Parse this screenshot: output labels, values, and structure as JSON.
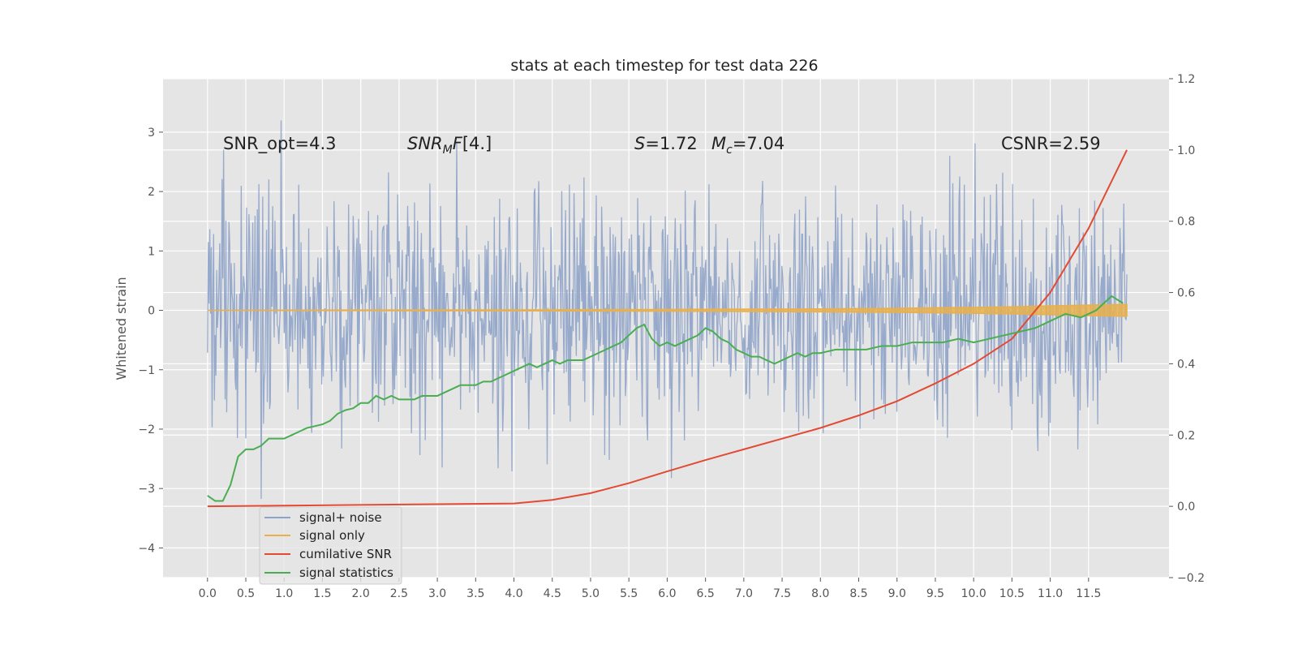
{
  "chart_data": {
    "type": "line",
    "title": "stats at each timestep for test data 226",
    "ylabel": "Whitened strain",
    "xlabel": "",
    "xlim": [
      -0.58,
      12.55
    ],
    "ylim": [
      -4.5,
      3.9
    ],
    "y2lim": [
      -0.2,
      1.2
    ],
    "grid": true,
    "legend_position": "lower-left",
    "x_ticks": [
      "0.0",
      "0.5",
      "1.0",
      "1.5",
      "2.0",
      "2.5",
      "3.0",
      "3.5",
      "4.0",
      "4.5",
      "5.0",
      "5.5",
      "6.0",
      "6.5",
      "7.0",
      "7.5",
      "8.0",
      "8.5",
      "9.0",
      "9.5",
      "10.0",
      "10.5",
      "11.0",
      "11.5"
    ],
    "y_ticks": [
      "3",
      "2",
      "1",
      "0",
      "−1",
      "−2",
      "−3",
      "−4"
    ],
    "y2_ticks": [
      "1.2",
      "1.0",
      "0.8",
      "0.6",
      "0.4",
      "0.2",
      "0.0",
      "−0.2"
    ],
    "annotations": {
      "snr_opt": "SNR_opt=4.3",
      "snr_mf": "[4.]",
      "s_value": "=1.72",
      "mc_value": "=7.04",
      "csnr": "CSNR=2.59"
    },
    "series": [
      {
        "name": "signal+ noise",
        "color": "#8fa3c8",
        "x_range": [
          0.0,
          12.0
        ],
        "samples": 1200,
        "std": 1.0,
        "min": -3.25,
        "max": 3.5
      },
      {
        "name": "signal only",
        "color": "#e8b04c",
        "x": [
          0.0,
          2.0,
          4.0,
          6.0,
          8.0,
          9.0,
          10.0,
          10.5,
          11.0,
          11.5,
          12.0
        ],
        "envelope": [
          0.0,
          0.005,
          0.008,
          0.015,
          0.025,
          0.035,
          0.05,
          0.06,
          0.075,
          0.09,
          0.1
        ]
      },
      {
        "name": "cumilative SNR",
        "color": "#e24a33",
        "x": [
          0.0,
          1.0,
          2.0,
          3.0,
          4.0,
          4.5,
          5.0,
          5.5,
          6.0,
          6.5,
          7.0,
          7.5,
          8.0,
          8.5,
          9.0,
          9.5,
          10.0,
          10.5,
          11.0,
          11.5,
          12.0
        ],
        "y2": [
          0.0,
          0.002,
          0.004,
          0.006,
          0.008,
          0.018,
          0.037,
          0.065,
          0.098,
          0.13,
          0.16,
          0.19,
          0.22,
          0.255,
          0.295,
          0.345,
          0.4,
          0.47,
          0.6,
          0.78,
          1.0
        ]
      },
      {
        "name": "signal statistics",
        "color": "#4aad52",
        "x": [
          0.0,
          0.1,
          0.2,
          0.3,
          0.4,
          0.5,
          0.6,
          0.7,
          0.8,
          0.9,
          1.0,
          1.1,
          1.2,
          1.3,
          1.4,
          1.5,
          1.6,
          1.7,
          1.8,
          1.9,
          2.0,
          2.1,
          2.2,
          2.3,
          2.4,
          2.5,
          2.6,
          2.7,
          2.8,
          2.9,
          3.0,
          3.1,
          3.2,
          3.3,
          3.4,
          3.5,
          3.6,
          3.7,
          3.8,
          3.9,
          4.0,
          4.1,
          4.2,
          4.3,
          4.4,
          4.5,
          4.6,
          4.7,
          4.8,
          4.9,
          5.0,
          5.1,
          5.2,
          5.3,
          5.4,
          5.5,
          5.6,
          5.7,
          5.8,
          5.9,
          6.0,
          6.1,
          6.2,
          6.3,
          6.4,
          6.5,
          6.6,
          6.7,
          6.8,
          6.9,
          7.0,
          7.1,
          7.2,
          7.3,
          7.4,
          7.5,
          7.6,
          7.7,
          7.8,
          7.9,
          8.0,
          8.2,
          8.4,
          8.6,
          8.8,
          9.0,
          9.2,
          9.4,
          9.6,
          9.8,
          10.0,
          10.2,
          10.4,
          10.6,
          10.8,
          11.0,
          11.2,
          11.4,
          11.6,
          11.8,
          11.95
        ],
        "y2": [
          0.03,
          0.015,
          0.015,
          0.06,
          0.14,
          0.16,
          0.16,
          0.17,
          0.19,
          0.19,
          0.19,
          0.2,
          0.21,
          0.22,
          0.225,
          0.23,
          0.24,
          0.26,
          0.27,
          0.275,
          0.29,
          0.29,
          0.31,
          0.3,
          0.31,
          0.3,
          0.3,
          0.3,
          0.31,
          0.31,
          0.31,
          0.32,
          0.33,
          0.34,
          0.34,
          0.34,
          0.35,
          0.35,
          0.36,
          0.37,
          0.38,
          0.39,
          0.4,
          0.39,
          0.4,
          0.41,
          0.4,
          0.41,
          0.41,
          0.41,
          0.42,
          0.43,
          0.44,
          0.45,
          0.46,
          0.48,
          0.5,
          0.51,
          0.47,
          0.45,
          0.46,
          0.45,
          0.46,
          0.47,
          0.48,
          0.5,
          0.49,
          0.47,
          0.46,
          0.44,
          0.43,
          0.42,
          0.42,
          0.41,
          0.4,
          0.41,
          0.42,
          0.43,
          0.42,
          0.43,
          0.43,
          0.44,
          0.44,
          0.44,
          0.45,
          0.45,
          0.46,
          0.46,
          0.46,
          0.47,
          0.46,
          0.47,
          0.48,
          0.49,
          0.5,
          0.52,
          0.54,
          0.53,
          0.55,
          0.59,
          0.57
        ]
      }
    ]
  }
}
